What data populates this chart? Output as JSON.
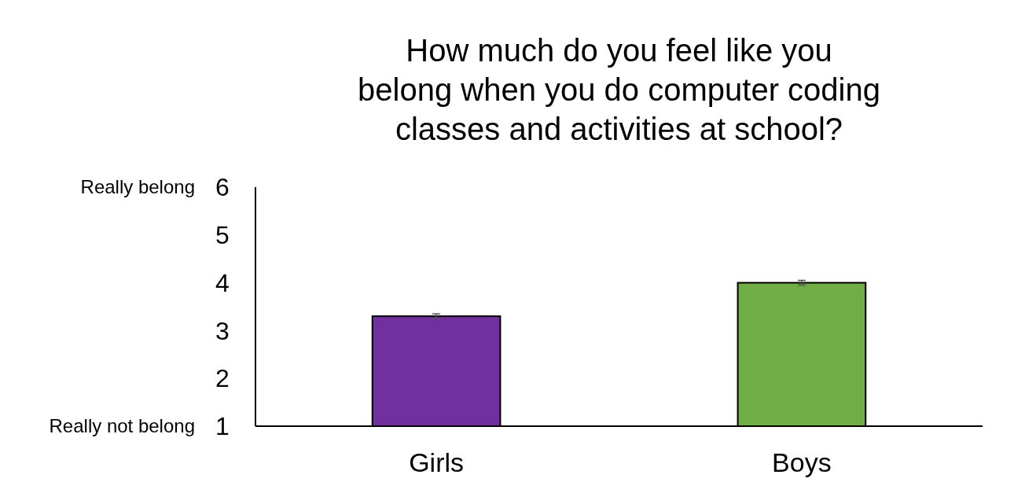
{
  "chart_data": {
    "type": "bar",
    "title": "How much do you feel like you belong when you do computer coding classes and activities at school?",
    "categories": [
      "Girls",
      "Boys"
    ],
    "values": [
      3.3,
      4.0
    ],
    "errors": [
      0.05,
      0.05
    ],
    "colors": [
      "#7030a0",
      "#70ad47"
    ],
    "ylim": [
      1,
      6
    ],
    "yticks": [
      1,
      2,
      3,
      4,
      5,
      6
    ],
    "annotations": [
      "Really belong",
      "Really not belong"
    ],
    "grid": false
  }
}
